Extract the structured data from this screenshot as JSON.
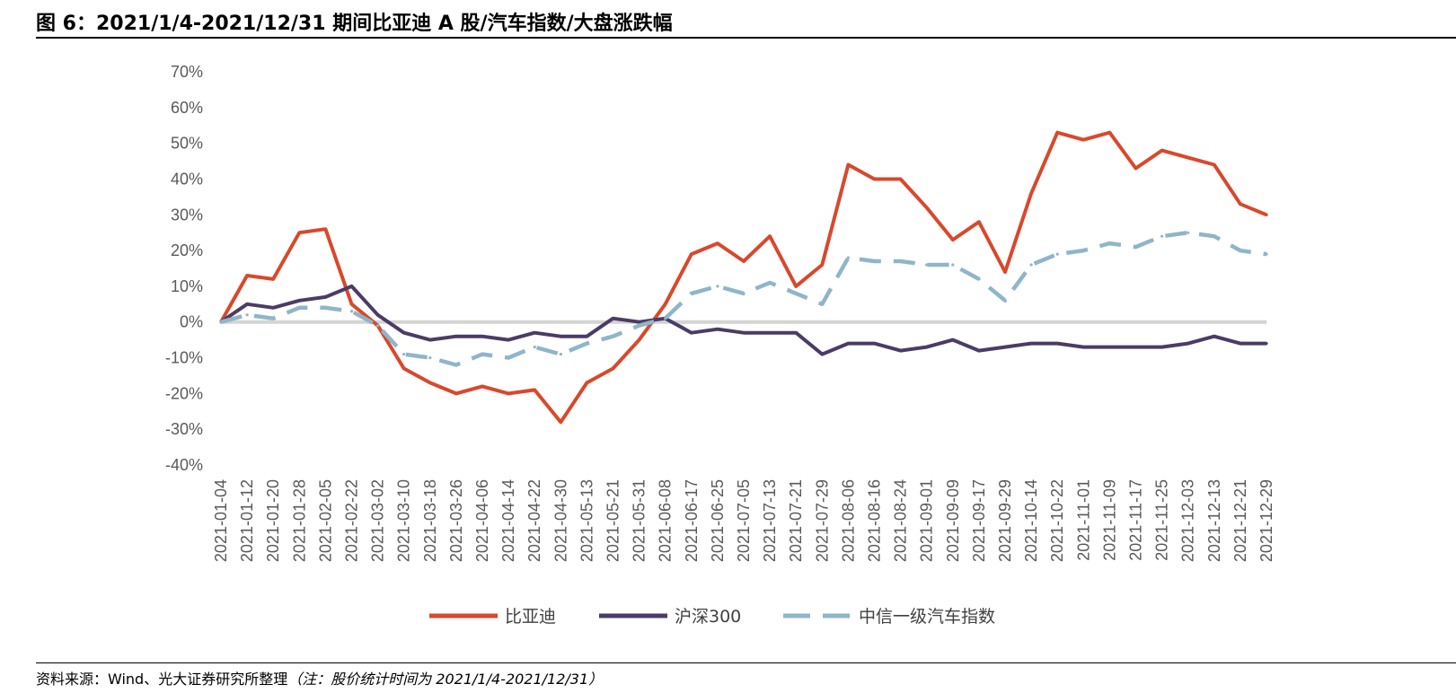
{
  "header": {
    "title": "图 6：2021/1/4-2021/12/31 期间比亚迪 A 股/汽车指数/大盘涨跌幅"
  },
  "footer": {
    "source": "资料来源：Wind、光大证券研究所整理",
    "note": "（注：股价统计时间为 2021/1/4-2021/12/31）"
  },
  "chart_data": {
    "type": "line",
    "title": "",
    "xlabel": "",
    "ylabel": "",
    "ylim": [
      -40,
      70
    ],
    "yticks": [
      70,
      60,
      50,
      40,
      30,
      20,
      10,
      0,
      -10,
      -20,
      -30,
      -40
    ],
    "ytick_labels": [
      "70%",
      "60%",
      "50%",
      "40%",
      "30%",
      "20%",
      "10%",
      "0%",
      "-10%",
      "-20%",
      "-30%",
      "-40%"
    ],
    "grid": false,
    "legend_position": "bottom",
    "x": [
      "2021-01-04",
      "2021-01-12",
      "2021-01-20",
      "2021-01-28",
      "2021-02-05",
      "2021-02-22",
      "2021-03-02",
      "2021-03-10",
      "2021-03-18",
      "2021-03-26",
      "2021-04-06",
      "2021-04-14",
      "2021-04-22",
      "2021-04-30",
      "2021-05-13",
      "2021-05-21",
      "2021-05-31",
      "2021-06-08",
      "2021-06-17",
      "2021-06-25",
      "2021-07-05",
      "2021-07-13",
      "2021-07-21",
      "2021-07-29",
      "2021-08-06",
      "2021-08-16",
      "2021-08-24",
      "2021-09-01",
      "2021-09-09",
      "2021-09-17",
      "2021-09-29",
      "2021-10-14",
      "2021-10-22",
      "2021-11-01",
      "2021-11-09",
      "2021-11-17",
      "2021-11-25",
      "2021-12-03",
      "2021-12-13",
      "2021-12-21",
      "2021-12-29"
    ],
    "series": [
      {
        "name": "比亚迪",
        "color": "#d9482b",
        "style": "solid",
        "values": [
          0,
          13,
          12,
          25,
          26,
          5,
          -1,
          -13,
          -17,
          -20,
          -18,
          -20,
          -19,
          -28,
          -17,
          -13,
          -5,
          5,
          19,
          22,
          17,
          24,
          10,
          16,
          44,
          40,
          40,
          32,
          23,
          28,
          14,
          36,
          53,
          51,
          53,
          43,
          48,
          46,
          44,
          33,
          30
        ]
      },
      {
        "name": "沪深300",
        "color": "#4a3c66",
        "style": "solid",
        "values": [
          0,
          5,
          4,
          6,
          7,
          10,
          2,
          -3,
          -5,
          -4,
          -4,
          -5,
          -3,
          -4,
          -4,
          1,
          0,
          1,
          -3,
          -2,
          -3,
          -3,
          -3,
          -9,
          -6,
          -6,
          -8,
          -7,
          -5,
          -8,
          -7,
          -6,
          -6,
          -7,
          -7,
          -7,
          -7,
          -6,
          -4,
          -6,
          -6
        ]
      },
      {
        "name": "中信一级汽车指数",
        "color": "#8fb5c8",
        "style": "dashed",
        "values": [
          0,
          2,
          1,
          4,
          4,
          3,
          -1,
          -9,
          -10,
          -12,
          -9,
          -10,
          -7,
          -9,
          -6,
          -4,
          -1,
          1,
          8,
          10,
          8,
          11,
          8,
          5,
          18,
          17,
          17,
          16,
          16,
          12,
          6,
          16,
          19,
          20,
          22,
          21,
          24,
          25,
          24,
          20,
          19
        ]
      }
    ]
  }
}
